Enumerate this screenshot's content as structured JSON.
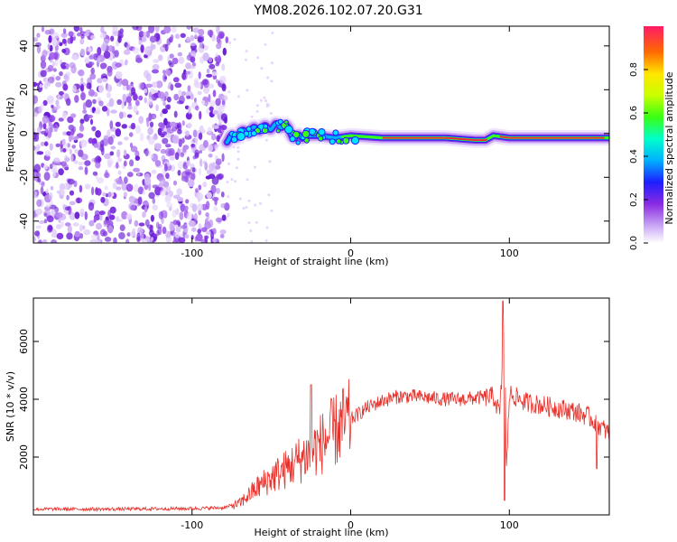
{
  "figure_title": "YM08.2026.102.07.20.G31",
  "chart_data": [
    {
      "type": "heatmap",
      "title": "",
      "xlabel": "Height of straight line (km)",
      "ylabel": "Frequency (Hz)",
      "xlim": [
        -200,
        163
      ],
      "ylim": [
        -50,
        49
      ],
      "x_ticks": [
        -100,
        0,
        100
      ],
      "y_ticks": [
        -40,
        -20,
        0,
        20,
        40
      ],
      "noise_region_x": [
        -200,
        -78
      ],
      "signal_ridge": {
        "x": [
          -78,
          -70,
          -60,
          -50,
          -42,
          -35,
          -28,
          -20,
          -10,
          0,
          20,
          60,
          78,
          85,
          90,
          100,
          120,
          140,
          163
        ],
        "freq": [
          -3,
          0,
          2,
          3,
          4,
          -2,
          -1,
          -1,
          -2,
          -1,
          -2,
          -2,
          -3,
          -3,
          -1,
          -2,
          -2,
          -2,
          -2
        ]
      },
      "colorbar": {
        "label": "Normalized spectral amplitude",
        "range": [
          0,
          1
        ],
        "ticks": [
          0.0,
          0.2,
          0.4,
          0.6,
          0.8
        ]
      }
    },
    {
      "type": "line",
      "title": "",
      "xlabel": "Height of straight line (km)",
      "ylabel": "SNR (10 * v/v)",
      "xlim": [
        -200,
        163
      ],
      "ylim": [
        0,
        7500
      ],
      "x_ticks": [
        -100,
        0,
        100
      ],
      "y_ticks": [
        2000,
        4000,
        6000
      ],
      "series": [
        {
          "name": "SNR",
          "color": "#e8302a",
          "x": [
            -200,
            -150,
            -100,
            -80,
            -70,
            -60,
            -50,
            -40,
            -30,
            -20,
            -10,
            0,
            10,
            20,
            30,
            40,
            50,
            60,
            70,
            80,
            90,
            94,
            96,
            97,
            98,
            100,
            110,
            120,
            130,
            140,
            150,
            163
          ],
          "values": [
            200,
            200,
            220,
            250,
            400,
            900,
            1300,
            1600,
            2000,
            2400,
            2900,
            3300,
            3700,
            3950,
            4100,
            4100,
            4050,
            4000,
            4000,
            4050,
            4100,
            3500,
            5500,
            7400,
            1200,
            4200,
            3900,
            3800,
            3700,
            3600,
            3400,
            2800
          ]
        }
      ],
      "spikes": [
        {
          "x": -25,
          "peak": 4500
        },
        {
          "x": 96,
          "peak": 7400
        },
        {
          "x": 97,
          "min": 500
        },
        {
          "x": 155,
          "min": 1600
        }
      ]
    }
  ]
}
